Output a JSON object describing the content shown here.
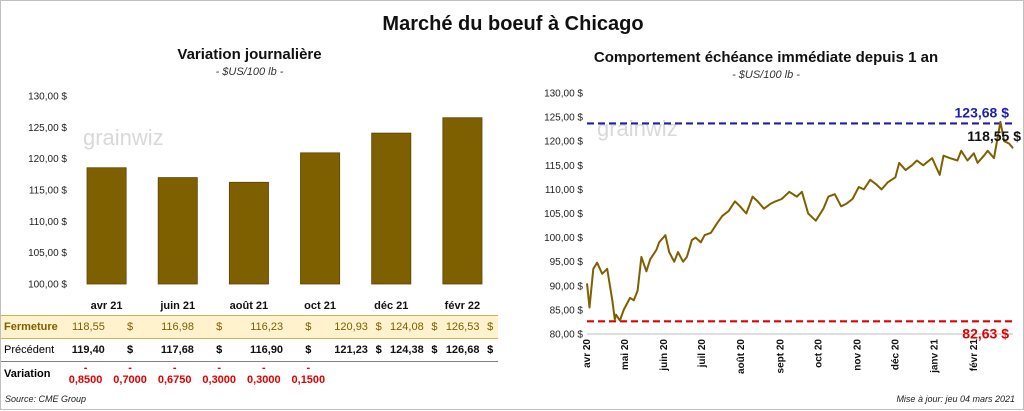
{
  "title": "Marché du boeuf à Chicago",
  "left": {
    "title": "Variation journalière",
    "units": "- $US/100 lb -",
    "watermark": "grainwiz"
  },
  "right": {
    "title": "Comportement échéance immédiate depuis 1 an",
    "units": "- $US/100 lb -",
    "watermark": "grainwiz"
  },
  "table": {
    "currency": "$",
    "rows": [
      {
        "label": "Fermeture",
        "values": [
          "118,55",
          "116,98",
          "116,23",
          "120,93",
          "124,08",
          "126,53"
        ]
      },
      {
        "label": "Précédent",
        "values": [
          "119,40",
          "117,68",
          "116,90",
          "121,23",
          "124,38",
          "126,68"
        ]
      },
      {
        "label": "Variation",
        "values": [
          "- 0,8500",
          "- 0,7000",
          "- 0,6750",
          "- 0,3000",
          "- 0,3000",
          "- 0,1500"
        ]
      }
    ]
  },
  "footer": {
    "source": "Source: CME Group",
    "updated": "Mise à jour: jeu 04 mars 2021"
  },
  "colors": {
    "bar": "#7f6000",
    "bar_stroke": "#5c4500",
    "line": "#7f6000",
    "high": "#1f1fa8",
    "low": "#e00000",
    "negative": "#e00000"
  },
  "chart_data": [
    {
      "type": "bar",
      "title": "Variation journalière",
      "ylabel": "$US/100 lb",
      "categories": [
        "avr 21",
        "juin 21",
        "août 21",
        "oct 21",
        "déc 21",
        "févr 22"
      ],
      "values": [
        118.55,
        116.98,
        116.23,
        120.93,
        124.08,
        126.53
      ],
      "ylim": [
        100,
        130
      ],
      "yticks": [
        100,
        105,
        110,
        115,
        120,
        125,
        130
      ],
      "ytick_labels": [
        "100,00 $",
        "105,00 $",
        "110,00 $",
        "115,00 $",
        "120,00 $",
        "125,00 $",
        "130,00 $"
      ],
      "grid": false
    },
    {
      "type": "line",
      "title": "Comportement échéance immédiate depuis 1 an",
      "ylabel": "$US/100 lb",
      "ylim": [
        80,
        130
      ],
      "yticks": [
        80,
        85,
        90,
        95,
        100,
        105,
        110,
        115,
        120,
        125,
        130
      ],
      "ytick_labels": [
        "80,00 $",
        "85,00 $",
        "90,00 $",
        "95,00 $",
        "100,00 $",
        "105,00 $",
        "110,00 $",
        "115,00 $",
        "120,00 $",
        "125,00 $",
        "130,00 $"
      ],
      "xlim": [
        "2020-04-01",
        "2021-03-04"
      ],
      "xticks": [
        "2020-04-01",
        "2020-05-01",
        "2020-06-01",
        "2020-07-01",
        "2020-08-01",
        "2020-09-01",
        "2020-10-01",
        "2020-11-01",
        "2020-12-01",
        "2021-01-01",
        "2021-02-01"
      ],
      "xtick_labels": [
        "avr 20",
        "mai 20",
        "juin 20",
        "juil 20",
        "août 20",
        "sept 20",
        "oct 20",
        "nov 20",
        "déc 20",
        "janv 21",
        "févr 21"
      ],
      "x": [
        "2020-04-01",
        "2020-04-03",
        "2020-04-06",
        "2020-04-09",
        "2020-04-13",
        "2020-04-17",
        "2020-04-21",
        "2020-04-23",
        "2020-04-24",
        "2020-04-27",
        "2020-04-30",
        "2020-05-05",
        "2020-05-08",
        "2020-05-11",
        "2020-05-14",
        "2020-05-18",
        "2020-05-21",
        "2020-05-26",
        "2020-05-28",
        "2020-06-02",
        "2020-06-05",
        "2020-06-09",
        "2020-06-12",
        "2020-06-16",
        "2020-06-19",
        "2020-06-23",
        "2020-06-26",
        "2020-06-30",
        "2020-07-03",
        "2020-07-08",
        "2020-07-13",
        "2020-07-17",
        "2020-07-22",
        "2020-07-27",
        "2020-07-31",
        "2020-08-05",
        "2020-08-10",
        "2020-08-14",
        "2020-08-19",
        "2020-08-24",
        "2020-08-28",
        "2020-09-02",
        "2020-09-08",
        "2020-09-14",
        "2020-09-18",
        "2020-09-23",
        "2020-09-29",
        "2020-10-05",
        "2020-10-09",
        "2020-10-14",
        "2020-10-19",
        "2020-10-23",
        "2020-10-28",
        "2020-11-02",
        "2020-11-06",
        "2020-11-11",
        "2020-11-16",
        "2020-11-20",
        "2020-11-25",
        "2020-12-01",
        "2020-12-04",
        "2020-12-09",
        "2020-12-14",
        "2020-12-18",
        "2020-12-23",
        "2020-12-30",
        "2021-01-05",
        "2021-01-08",
        "2021-01-13",
        "2021-01-19",
        "2021-01-22",
        "2021-01-27",
        "2021-02-01",
        "2021-02-04",
        "2021-02-09",
        "2021-02-12",
        "2021-02-17",
        "2021-02-22",
        "2021-02-25",
        "2021-03-01",
        "2021-03-04"
      ],
      "values": [
        90.5,
        85.5,
        93.5,
        94.8,
        92.5,
        93.5,
        87.0,
        83.0,
        84.0,
        82.8,
        85.0,
        87.5,
        87.0,
        89.0,
        96.0,
        93.0,
        95.5,
        97.5,
        99.0,
        100.5,
        97.0,
        95.0,
        97.0,
        95.0,
        96.0,
        99.5,
        100.0,
        99.0,
        100.5,
        101.0,
        103.0,
        104.5,
        105.5,
        107.5,
        106.5,
        105.0,
        108.5,
        107.5,
        106.0,
        107.0,
        107.5,
        108.0,
        109.5,
        108.5,
        109.5,
        105.0,
        103.5,
        106.0,
        108.5,
        109.0,
        106.5,
        107.0,
        108.0,
        110.5,
        110.0,
        112.0,
        111.0,
        110.0,
        111.5,
        112.5,
        115.5,
        114.0,
        115.0,
        116.0,
        115.0,
        116.5,
        113.0,
        117.0,
        116.5,
        116.0,
        118.0,
        116.0,
        117.5,
        115.5,
        117.0,
        118.0,
        116.5,
        124.0,
        120.0,
        119.5,
        118.55
      ],
      "reference_lines": [
        {
          "value": 123.68,
          "label": "123,68 $"
        },
        {
          "value": 82.63,
          "label": "82,63 $"
        }
      ],
      "last_label": "118,55 $",
      "grid": false
    }
  ]
}
